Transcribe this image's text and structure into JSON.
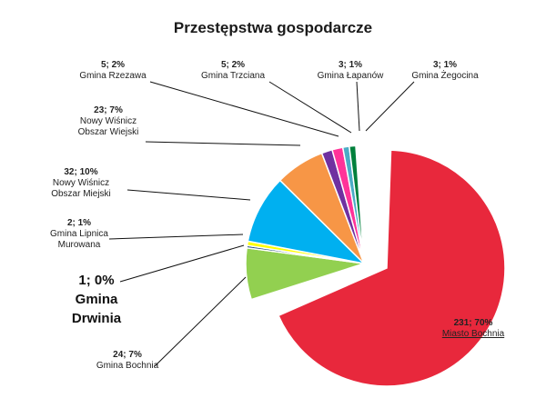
{
  "chart_data": {
    "type": "pie",
    "title": "Przestępstwa gospodarcze",
    "slices": [
      {
        "name": "Miasto Bochnia",
        "label": "231; 70%",
        "value": 231,
        "percent": 70,
        "color": "#e8283c",
        "exploded": true
      },
      {
        "name": "Gmina Bochnia",
        "label": "24; 7%",
        "value": 24,
        "percent": 7,
        "color": "#92d050",
        "exploded": false
      },
      {
        "name": "Gmina Drwinia",
        "label": "1; 0%",
        "value": 1,
        "percent": 0,
        "color": "#1f4e79",
        "exploded": false
      },
      {
        "name": "Gmina Lipnica Murowana",
        "label": "2; 1%",
        "value": 2,
        "percent": 1,
        "color": "#ffff00",
        "exploded": false
      },
      {
        "name": "Nowy Wiśnicz Obszar Miejski",
        "label": "32; 10%",
        "value": 32,
        "percent": 10,
        "color": "#00b0f0",
        "exploded": false
      },
      {
        "name": "Nowy Wiśnicz Obszar Wiejski",
        "label": "23; 7%",
        "value": 23,
        "percent": 7,
        "color": "#f79646",
        "exploded": false
      },
      {
        "name": "Gmina Rzezawa",
        "label": "5; 2%",
        "value": 5,
        "percent": 2,
        "color": "#7030a0",
        "exploded": false
      },
      {
        "name": "Gmina Trzciana",
        "label": "5; 2%",
        "value": 5,
        "percent": 2,
        "color": "#ff3399",
        "exploded": false
      },
      {
        "name": "Gmina Łapanów",
        "label": "3; 1%",
        "value": 3,
        "percent": 1,
        "color": "#4bacc6",
        "exploded": false
      },
      {
        "name": "Gmina Żegocina",
        "label": "3; 1%",
        "value": 3,
        "percent": 1,
        "color": "#00803c",
        "exploded": false
      }
    ],
    "labels": [
      {
        "value_text": "231; 70%",
        "name_lines": [
          "Miasto Bochnia"
        ]
      },
      {
        "value_text": "24; 7%",
        "name_lines": [
          "Gmina Bochnia"
        ]
      },
      {
        "value_text": "1; 0%",
        "name_lines": [
          "Gmina",
          "Drwinia"
        ]
      },
      {
        "value_text": "2; 1%",
        "name_lines": [
          "Gmina Lipnica",
          "Murowana"
        ]
      },
      {
        "value_text": "32; 10%",
        "name_lines": [
          "Nowy Wiśnicz",
          "Obszar Miejski"
        ]
      },
      {
        "value_text": "23; 7%",
        "name_lines": [
          "Nowy Wiśnicz",
          "Obszar Wiejski"
        ]
      },
      {
        "value_text": "5; 2%",
        "name_lines": [
          "Gmina Rzezawa"
        ]
      },
      {
        "value_text": "5; 2%",
        "name_lines": [
          "Gmina Trzciana"
        ]
      },
      {
        "value_text": "3; 1%",
        "name_lines": [
          "Gmina Łapanów"
        ]
      },
      {
        "value_text": "3; 1%",
        "name_lines": [
          "Gmina Żegocina"
        ]
      }
    ],
    "legend": "none"
  }
}
